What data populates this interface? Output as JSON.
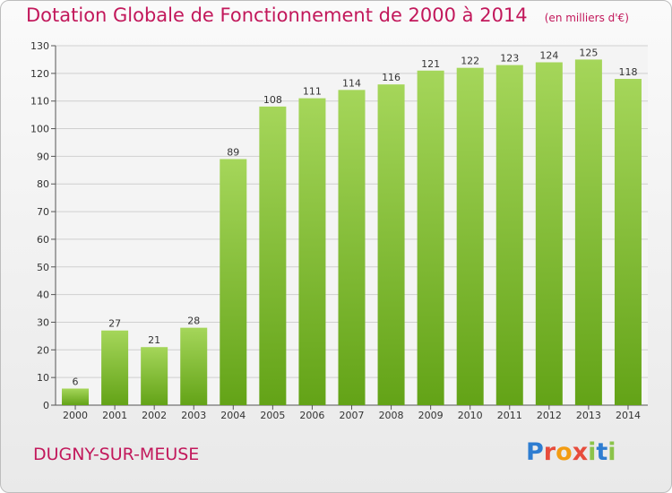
{
  "title": "Dotation Globale de Fonctionnement de 2000 à 2014",
  "unit_note": "(en milliers d'€)",
  "town": "DUGNY-SUR-MEUSE",
  "logo": {
    "letters": [
      "P",
      "r",
      "o",
      "x",
      "i",
      "t",
      "i"
    ]
  },
  "colors": {
    "title": "#c2185b",
    "bar_light": "#a5d65a",
    "bar_dark": "#63a317",
    "grid": "#cfcfcf"
  },
  "chart_data": {
    "type": "bar",
    "categories": [
      "2000",
      "2001",
      "2002",
      "2003",
      "2004",
      "2005",
      "2006",
      "2007",
      "2008",
      "2009",
      "2010",
      "2011",
      "2012",
      "2013",
      "2014"
    ],
    "values": [
      6,
      27,
      21,
      28,
      89,
      108,
      111,
      114,
      116,
      121,
      122,
      123,
      124,
      125,
      118
    ],
    "ylim": [
      0,
      130
    ],
    "yticks": [
      0,
      10,
      20,
      30,
      40,
      50,
      60,
      70,
      80,
      90,
      100,
      110,
      120,
      130
    ],
    "grid": true,
    "data_labels": true
  }
}
